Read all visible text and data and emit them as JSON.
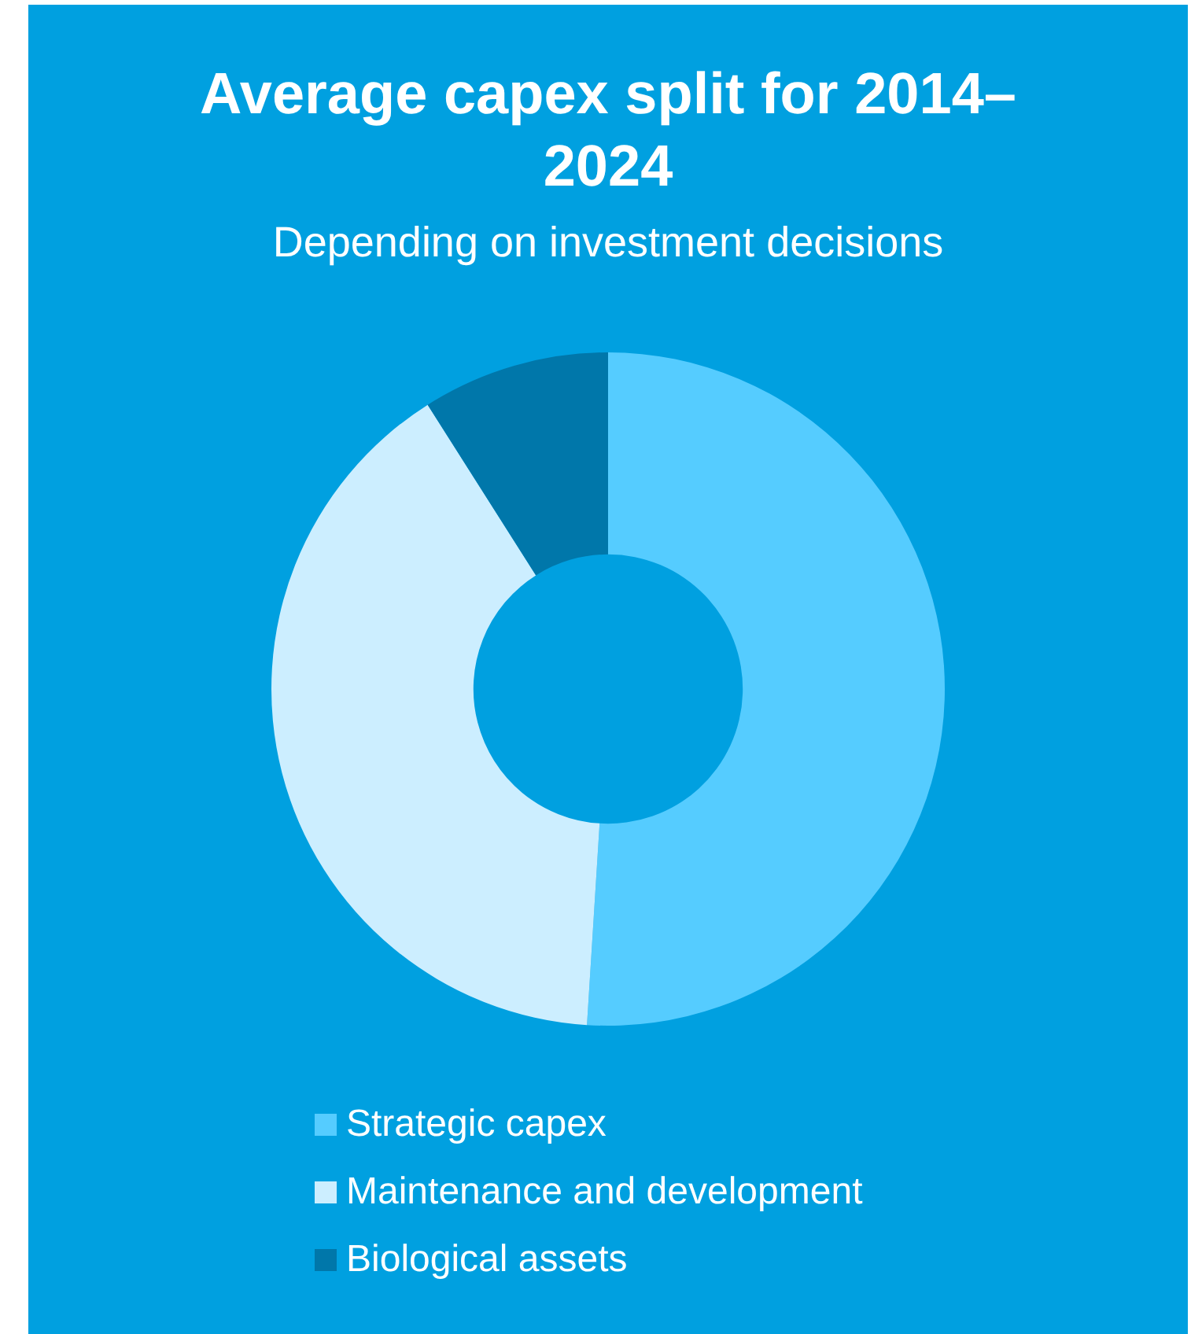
{
  "chart_data": {
    "type": "donut",
    "title": "Average capex split for 2014–2024",
    "subtitle": "Depending on investment decisions",
    "categories": [
      "Strategic capex",
      "Maintenance and development",
      "Biological assets"
    ],
    "values": [
      51,
      40,
      9
    ],
    "colors": [
      "#55ccff",
      "#cceeff",
      "#0077aa"
    ],
    "legend": "bottom"
  }
}
